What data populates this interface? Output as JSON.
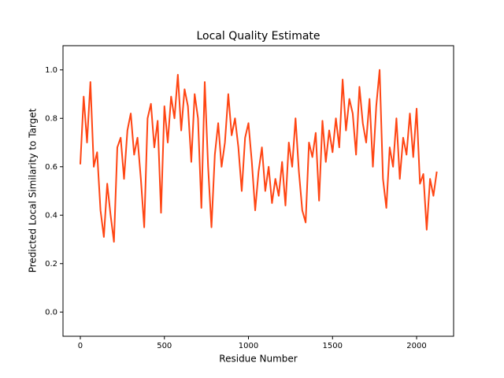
{
  "chart_data": {
    "type": "line",
    "title": "Local Quality Estimate",
    "x_label": "Residue Number",
    "y_label": "Predicted Local Similarity to Target",
    "x": [
      0,
      20,
      40,
      60,
      80,
      100,
      120,
      140,
      160,
      180,
      200,
      220,
      240,
      260,
      280,
      300,
      320,
      340,
      360,
      380,
      400,
      420,
      440,
      460,
      480,
      500,
      520,
      540,
      560,
      580,
      600,
      620,
      640,
      660,
      680,
      700,
      720,
      740,
      760,
      780,
      800,
      820,
      840,
      860,
      880,
      900,
      920,
      940,
      960,
      980,
      1000,
      1020,
      1040,
      1060,
      1080,
      1100,
      1120,
      1140,
      1160,
      1180,
      1200,
      1220,
      1240,
      1260,
      1280,
      1300,
      1320,
      1340,
      1360,
      1380,
      1400,
      1420,
      1440,
      1460,
      1480,
      1500,
      1520,
      1540,
      1560,
      1580,
      1600,
      1620,
      1640,
      1660,
      1680,
      1700,
      1720,
      1740,
      1760,
      1780,
      1800,
      1820,
      1840,
      1860,
      1880,
      1900,
      1920,
      1940,
      1960,
      1980,
      2000,
      2020,
      2040,
      2060,
      2080,
      2100,
      2120
    ],
    "series": [
      {
        "color": "#ff4513",
        "values": [
          0.61,
          0.89,
          0.7,
          0.95,
          0.6,
          0.66,
          0.42,
          0.31,
          0.53,
          0.4,
          0.29,
          0.68,
          0.72,
          0.55,
          0.75,
          0.82,
          0.65,
          0.72,
          0.55,
          0.35,
          0.8,
          0.86,
          0.68,
          0.79,
          0.41,
          0.85,
          0.7,
          0.89,
          0.8,
          0.98,
          0.75,
          0.92,
          0.85,
          0.62,
          0.9,
          0.8,
          0.43,
          0.95,
          0.6,
          0.35,
          0.65,
          0.78,
          0.6,
          0.7,
          0.9,
          0.73,
          0.8,
          0.68,
          0.5,
          0.72,
          0.78,
          0.62,
          0.42,
          0.58,
          0.68,
          0.5,
          0.6,
          0.45,
          0.55,
          0.48,
          0.62,
          0.44,
          0.7,
          0.6,
          0.8,
          0.58,
          0.42,
          0.37,
          0.7,
          0.64,
          0.74,
          0.46,
          0.79,
          0.62,
          0.75,
          0.66,
          0.8,
          0.68,
          0.96,
          0.75,
          0.88,
          0.82,
          0.65,
          0.93,
          0.78,
          0.7,
          0.88,
          0.6,
          0.85,
          1.0,
          0.55,
          0.43,
          0.68,
          0.6,
          0.8,
          0.55,
          0.72,
          0.65,
          0.82,
          0.64,
          0.84,
          0.53,
          0.57,
          0.34,
          0.55,
          0.48,
          0.58
        ]
      }
    ],
    "xlim": [
      -103,
      2220
    ],
    "ylim": [
      -0.1,
      1.1
    ],
    "xticks": [
      0,
      500,
      1000,
      1500,
      2000
    ],
    "yticks": [
      {
        "value": 0,
        "label": "0.0"
      },
      0.2,
      0.4,
      0.6,
      0.8,
      {
        "value": 1,
        "label": "1.0"
      }
    ]
  }
}
